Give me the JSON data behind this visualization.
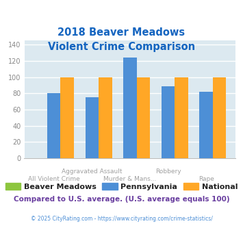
{
  "title": "2018 Beaver Meadows\nViolent Crime Comparison",
  "categories_top": [
    "",
    "Aggravated Assault",
    "",
    "Robbery",
    ""
  ],
  "categories_bottom": [
    "All Violent Crime",
    "",
    "Murder & Mans...",
    "",
    "Rape"
  ],
  "beaver_meadows": [
    0,
    0,
    0,
    0,
    0
  ],
  "pennsylvania": [
    80,
    75,
    124,
    89,
    82
  ],
  "national": [
    100,
    100,
    100,
    100,
    100
  ],
  "colors": {
    "beaver_meadows": "#8DC63F",
    "pennsylvania": "#4D8FD6",
    "national": "#FFA726"
  },
  "ylim": [
    0,
    145
  ],
  "yticks": [
    0,
    20,
    40,
    60,
    80,
    100,
    120,
    140
  ],
  "title_color": "#1565C0",
  "xtick_color": "#A0A0A0",
  "ytick_color": "#888888",
  "legend_labels": [
    "Beaver Meadows",
    "Pennsylvania",
    "National"
  ],
  "footnote1": "Compared to U.S. average. (U.S. average equals 100)",
  "footnote2": "© 2025 CityRating.com - https://www.cityrating.com/crime-statistics/",
  "footnote1_color": "#6A3FA0",
  "footnote2_color": "#4D8FD6",
  "background_color": "#DCE9F0",
  "fig_background": "#FFFFFF",
  "bar_width": 0.35,
  "grid_color": "#FFFFFF"
}
